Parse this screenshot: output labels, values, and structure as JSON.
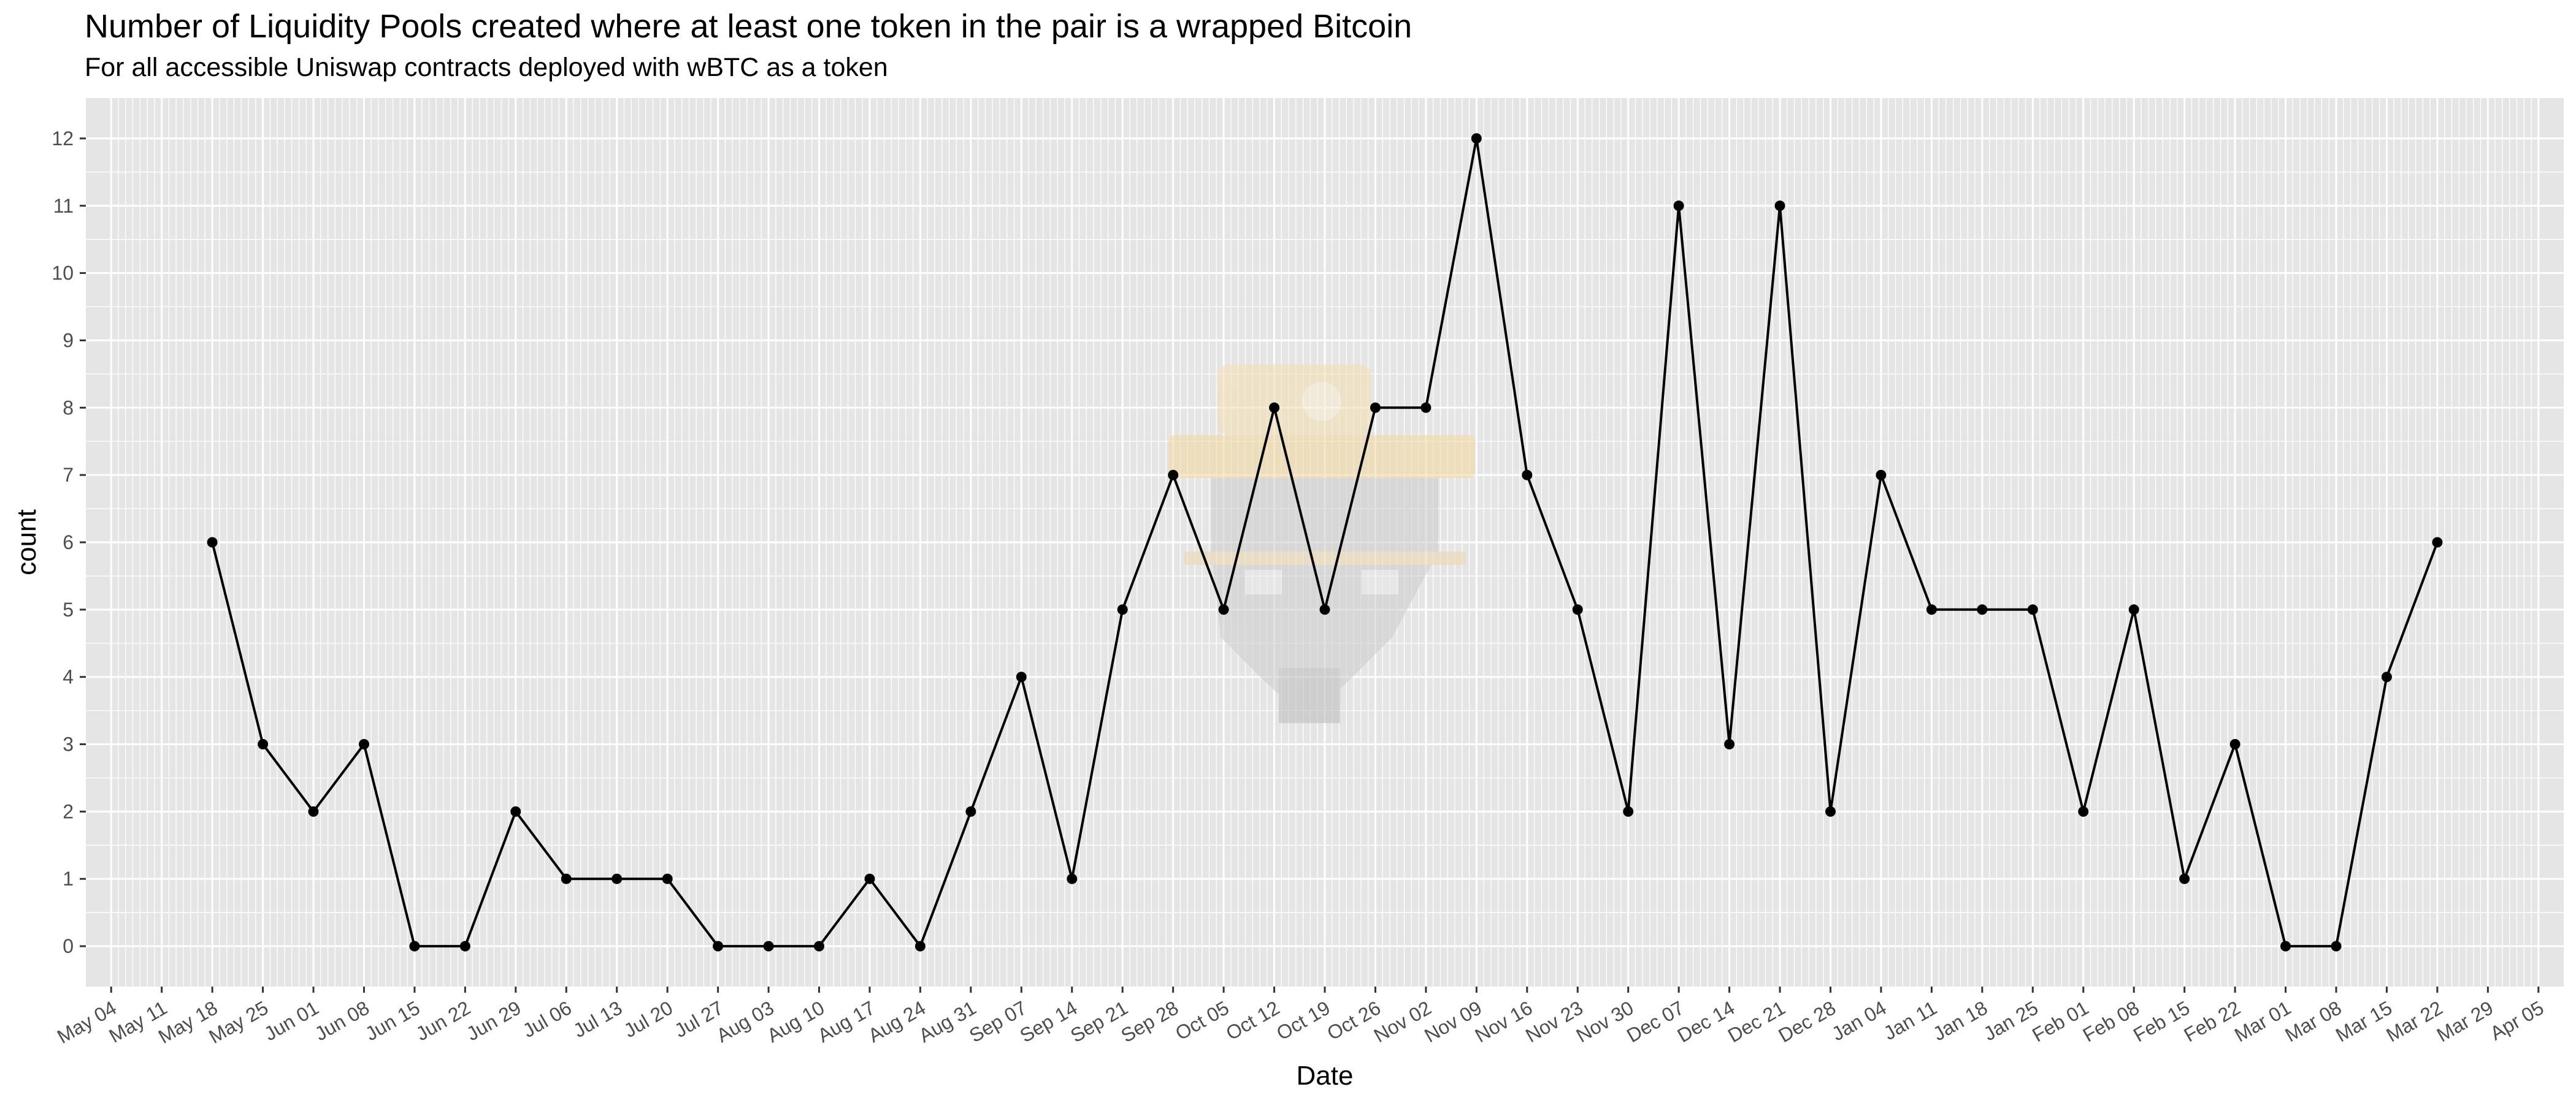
{
  "chart_data": {
    "type": "line",
    "title": "Number of Liquidity Pools created where at least one token in the pair is a wrapped Bitcoin",
    "subtitle": "For all accessible Uniswap contracts deployed with wBTC as a token",
    "xlabel": "Date",
    "ylabel": "count",
    "x_tick_labels": [
      "May 04",
      "May 11",
      "May 18",
      "May 25",
      "Jun 01",
      "Jun 08",
      "Jun 15",
      "Jun 22",
      "Jun 29",
      "Jul 06",
      "Jul 13",
      "Jul 20",
      "Jul 27",
      "Aug 03",
      "Aug 10",
      "Aug 17",
      "Aug 24",
      "Aug 31",
      "Sep 07",
      "Sep 14",
      "Sep 21",
      "Sep 28",
      "Oct 05",
      "Oct 12",
      "Oct 19",
      "Oct 26",
      "Nov 02",
      "Nov 09",
      "Nov 16",
      "Nov 23",
      "Nov 30",
      "Dec 07",
      "Dec 14",
      "Dec 21",
      "Dec 28",
      "Jan 04",
      "Jan 11",
      "Jan 18",
      "Jan 25",
      "Feb 01",
      "Feb 08",
      "Feb 15",
      "Feb 22",
      "Mar 01",
      "Mar 08",
      "Mar 15",
      "Mar 22",
      "Mar 29",
      "Apr 05"
    ],
    "y_ticks": [
      0,
      1,
      2,
      3,
      4,
      5,
      6,
      7,
      8,
      9,
      10,
      11,
      12
    ],
    "ylim": [
      -0.6,
      12.6
    ],
    "x": [
      "May 18",
      "May 25",
      "Jun 01",
      "Jun 08",
      "Jun 15",
      "Jun 22",
      "Jun 29",
      "Jul 06",
      "Jul 13",
      "Jul 20",
      "Jul 27",
      "Aug 03",
      "Aug 10",
      "Aug 17",
      "Aug 24",
      "Aug 31",
      "Sep 07",
      "Sep 14",
      "Sep 21",
      "Sep 28",
      "Oct 05",
      "Oct 12",
      "Oct 19",
      "Oct 26",
      "Nov 02",
      "Nov 09",
      "Nov 16",
      "Nov 23",
      "Nov 30",
      "Dec 07",
      "Dec 14",
      "Dec 21",
      "Dec 28",
      "Jan 04",
      "Jan 11",
      "Jan 18",
      "Jan 25",
      "Feb 01",
      "Feb 08",
      "Feb 15",
      "Feb 22",
      "Mar 01",
      "Mar 08",
      "Mar 15",
      "Mar 22"
    ],
    "values": [
      6,
      3,
      2,
      3,
      0,
      0,
      2,
      1,
      1,
      1,
      0,
      0,
      0,
      1,
      0,
      2,
      4,
      1,
      5,
      7,
      5,
      8,
      5,
      8,
      8,
      12,
      7,
      5,
      2,
      11,
      3,
      11,
      2,
      7,
      5,
      5,
      5,
      2,
      5,
      1,
      3,
      0,
      0,
      4,
      6
    ],
    "grid": true,
    "colors": {
      "panel": "#e5e5e5",
      "grid": "#ffffff",
      "line": "#000000",
      "tick_text": "#4d4d4d"
    }
  }
}
